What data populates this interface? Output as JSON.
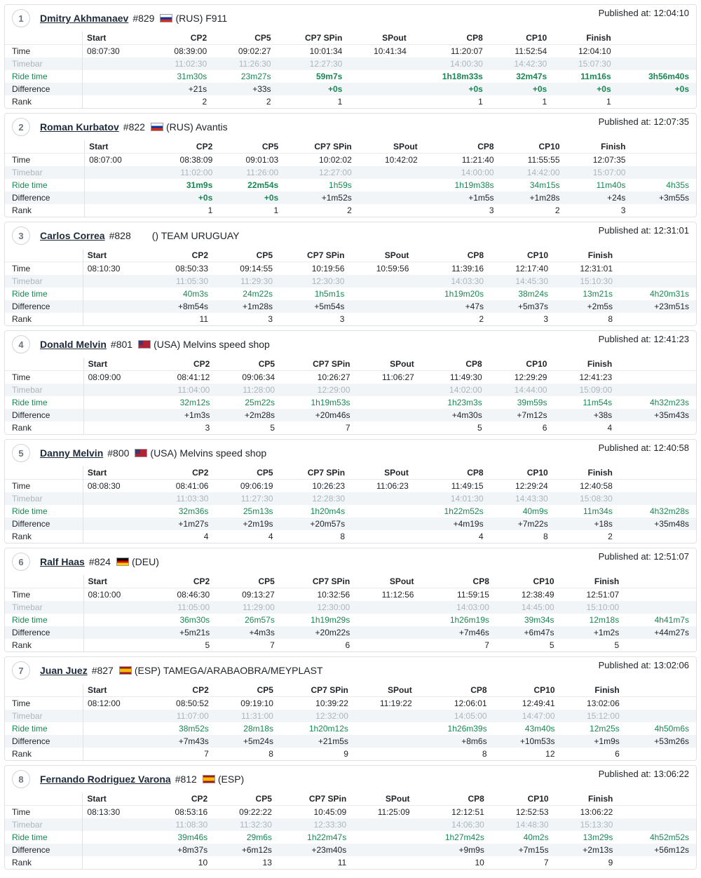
{
  "columns": [
    "",
    "Start",
    "CP2",
    "CP5",
    "CP7 SPin",
    "SPout",
    "CP8",
    "CP10",
    "Finish",
    ""
  ],
  "row_labels": [
    "Time",
    "Timebar",
    "Ride time",
    "Difference",
    "Rank"
  ],
  "published_prefix": "Published at: ",
  "colors": {
    "ride_time": "#198754",
    "timebar": "#adb5bd",
    "border": "#dee2e6",
    "alt_row": "#f2f5f8"
  },
  "riders": [
    {
      "rank": "1",
      "name": "Dmitry Akhmanaev",
      "bib": "#829",
      "flag": "rus",
      "country_team": "(RUS) F911",
      "published": "12:04:10",
      "rows": {
        "time": [
          "08:07:30",
          "08:39:00",
          "09:02:27",
          "10:01:34",
          "10:41:34",
          "11:20:07",
          "11:52:54",
          "12:04:10",
          ""
        ],
        "timebar": [
          "",
          "11:02:30",
          "11:26:30",
          "12:27:30",
          "",
          "14:00:30",
          "14:42:30",
          "15:07:30",
          ""
        ],
        "ride": [
          "",
          "31m30s",
          "23m27s",
          "59m7s",
          "",
          "1h18m33s",
          "32m47s",
          "11m16s",
          "3h56m40s"
        ],
        "diff": [
          "",
          "+21s",
          "+33s",
          "+0s",
          "",
          "+0s",
          "+0s",
          "+0s",
          "+0s"
        ],
        "rankrow": [
          "",
          "2",
          "2",
          "1",
          "",
          "1",
          "1",
          "1",
          ""
        ]
      },
      "best_cols": [
        4,
        6,
        7,
        8,
        9
      ]
    },
    {
      "rank": "2",
      "name": "Roman Kurbatov",
      "bib": "#822",
      "flag": "rus",
      "country_team": "(RUS) Avantis",
      "published": "12:07:35",
      "rows": {
        "time": [
          "08:07:00",
          "08:38:09",
          "09:01:03",
          "10:02:02",
          "10:42:02",
          "11:21:40",
          "11:55:55",
          "12:07:35",
          ""
        ],
        "timebar": [
          "",
          "11:02:00",
          "11:26:00",
          "12:27:00",
          "",
          "14:00:00",
          "14:42:00",
          "15:07:00",
          ""
        ],
        "ride": [
          "",
          "31m9s",
          "22m54s",
          "1h59s",
          "",
          "1h19m38s",
          "34m15s",
          "11m40s",
          "4h35s"
        ],
        "diff": [
          "",
          "+0s",
          "+0s",
          "+1m52s",
          "",
          "+1m5s",
          "+1m28s",
          "+24s",
          "+3m55s"
        ],
        "rankrow": [
          "",
          "1",
          "1",
          "2",
          "",
          "3",
          "2",
          "3",
          ""
        ]
      },
      "best_cols": [
        2,
        3
      ]
    },
    {
      "rank": "3",
      "name": "Carlos Correa",
      "bib": "#828",
      "flag": "none",
      "country_team": "() TEAM URUGUAY",
      "published": "12:31:01",
      "rows": {
        "time": [
          "08:10:30",
          "08:50:33",
          "09:14:55",
          "10:19:56",
          "10:59:56",
          "11:39:16",
          "12:17:40",
          "12:31:01",
          ""
        ],
        "timebar": [
          "",
          "11:05:30",
          "11:29:30",
          "12:30:30",
          "",
          "14:03:30",
          "14:45:30",
          "15:10:30",
          ""
        ],
        "ride": [
          "",
          "40m3s",
          "24m22s",
          "1h5m1s",
          "",
          "1h19m20s",
          "38m24s",
          "13m21s",
          "4h20m31s"
        ],
        "diff": [
          "",
          "+8m54s",
          "+1m28s",
          "+5m54s",
          "",
          "+47s",
          "+5m37s",
          "+2m5s",
          "+23m51s"
        ],
        "rankrow": [
          "",
          "11",
          "3",
          "3",
          "",
          "2",
          "3",
          "8",
          ""
        ]
      },
      "best_cols": []
    },
    {
      "rank": "4",
      "name": "Donald Melvin",
      "bib": "#801",
      "flag": "usa",
      "country_team": "(USA) Melvins speed shop",
      "published": "12:41:23",
      "rows": {
        "time": [
          "08:09:00",
          "08:41:12",
          "09:06:34",
          "10:26:27",
          "11:06:27",
          "11:49:30",
          "12:29:29",
          "12:41:23",
          ""
        ],
        "timebar": [
          "",
          "11:04:00",
          "11:28:00",
          "12:29:00",
          "",
          "14:02:00",
          "14:44:00",
          "15:09:00",
          ""
        ],
        "ride": [
          "",
          "32m12s",
          "25m22s",
          "1h19m53s",
          "",
          "1h23m3s",
          "39m59s",
          "11m54s",
          "4h32m23s"
        ],
        "diff": [
          "",
          "+1m3s",
          "+2m28s",
          "+20m46s",
          "",
          "+4m30s",
          "+7m12s",
          "+38s",
          "+35m43s"
        ],
        "rankrow": [
          "",
          "3",
          "5",
          "7",
          "",
          "5",
          "6",
          "4",
          ""
        ]
      },
      "best_cols": []
    },
    {
      "rank": "5",
      "name": "Danny Melvin",
      "bib": "#800",
      "flag": "usa",
      "country_team": "(USA) Melvins speed shop",
      "published": "12:40:58",
      "rows": {
        "time": [
          "08:08:30",
          "08:41:06",
          "09:06:19",
          "10:26:23",
          "11:06:23",
          "11:49:15",
          "12:29:24",
          "12:40:58",
          ""
        ],
        "timebar": [
          "",
          "11:03:30",
          "11:27:30",
          "12:28:30",
          "",
          "14:01:30",
          "14:43:30",
          "15:08:30",
          ""
        ],
        "ride": [
          "",
          "32m36s",
          "25m13s",
          "1h20m4s",
          "",
          "1h22m52s",
          "40m9s",
          "11m34s",
          "4h32m28s"
        ],
        "diff": [
          "",
          "+1m27s",
          "+2m19s",
          "+20m57s",
          "",
          "+4m19s",
          "+7m22s",
          "+18s",
          "+35m48s"
        ],
        "rankrow": [
          "",
          "4",
          "4",
          "8",
          "",
          "4",
          "8",
          "2",
          ""
        ]
      },
      "best_cols": []
    },
    {
      "rank": "6",
      "name": "Ralf Haas",
      "bib": "#824",
      "flag": "deu",
      "country_team": "(DEU)",
      "published": "12:51:07",
      "rows": {
        "time": [
          "08:10:00",
          "08:46:30",
          "09:13:27",
          "10:32:56",
          "11:12:56",
          "11:59:15",
          "12:38:49",
          "12:51:07",
          ""
        ],
        "timebar": [
          "",
          "11:05:00",
          "11:29:00",
          "12:30:00",
          "",
          "14:03:00",
          "14:45:00",
          "15:10:00",
          ""
        ],
        "ride": [
          "",
          "36m30s",
          "26m57s",
          "1h19m29s",
          "",
          "1h26m19s",
          "39m34s",
          "12m18s",
          "4h41m7s"
        ],
        "diff": [
          "",
          "+5m21s",
          "+4m3s",
          "+20m22s",
          "",
          "+7m46s",
          "+6m47s",
          "+1m2s",
          "+44m27s"
        ],
        "rankrow": [
          "",
          "5",
          "7",
          "6",
          "",
          "7",
          "5",
          "5",
          ""
        ]
      },
      "best_cols": []
    },
    {
      "rank": "7",
      "name": "Juan Juez",
      "bib": "#827",
      "flag": "esp",
      "country_team": "(ESP) TAMEGA/ARABAOBRA/MEYPLAST",
      "published": "13:02:06",
      "rows": {
        "time": [
          "08:12:00",
          "08:50:52",
          "09:19:10",
          "10:39:22",
          "11:19:22",
          "12:06:01",
          "12:49:41",
          "13:02:06",
          ""
        ],
        "timebar": [
          "",
          "11:07:00",
          "11:31:00",
          "12:32:00",
          "",
          "14:05:00",
          "14:47:00",
          "15:12:00",
          ""
        ],
        "ride": [
          "",
          "38m52s",
          "28m18s",
          "1h20m12s",
          "",
          "1h26m39s",
          "43m40s",
          "12m25s",
          "4h50m6s"
        ],
        "diff": [
          "",
          "+7m43s",
          "+5m24s",
          "+21m5s",
          "",
          "+8m6s",
          "+10m53s",
          "+1m9s",
          "+53m26s"
        ],
        "rankrow": [
          "",
          "7",
          "8",
          "9",
          "",
          "8",
          "12",
          "6",
          ""
        ]
      },
      "best_cols": []
    },
    {
      "rank": "8",
      "name": "Fernando Rodriguez Varona",
      "bib": "#812",
      "flag": "esp",
      "country_team": "(ESP)",
      "published": "13:06:22",
      "rows": {
        "time": [
          "08:13:30",
          "08:53:16",
          "09:22:22",
          "10:45:09",
          "11:25:09",
          "12:12:51",
          "12:52:53",
          "13:06:22",
          ""
        ],
        "timebar": [
          "",
          "11:08:30",
          "11:32:30",
          "12:33:30",
          "",
          "14:06:30",
          "14:48:30",
          "15:13:30",
          ""
        ],
        "ride": [
          "",
          "39m46s",
          "29m6s",
          "1h22m47s",
          "",
          "1h27m42s",
          "40m2s",
          "13m29s",
          "4h52m52s"
        ],
        "diff": [
          "",
          "+8m37s",
          "+6m12s",
          "+23m40s",
          "",
          "+9m9s",
          "+7m15s",
          "+2m13s",
          "+56m12s"
        ],
        "rankrow": [
          "",
          "10",
          "13",
          "11",
          "",
          "10",
          "7",
          "9",
          ""
        ]
      },
      "best_cols": []
    }
  ]
}
